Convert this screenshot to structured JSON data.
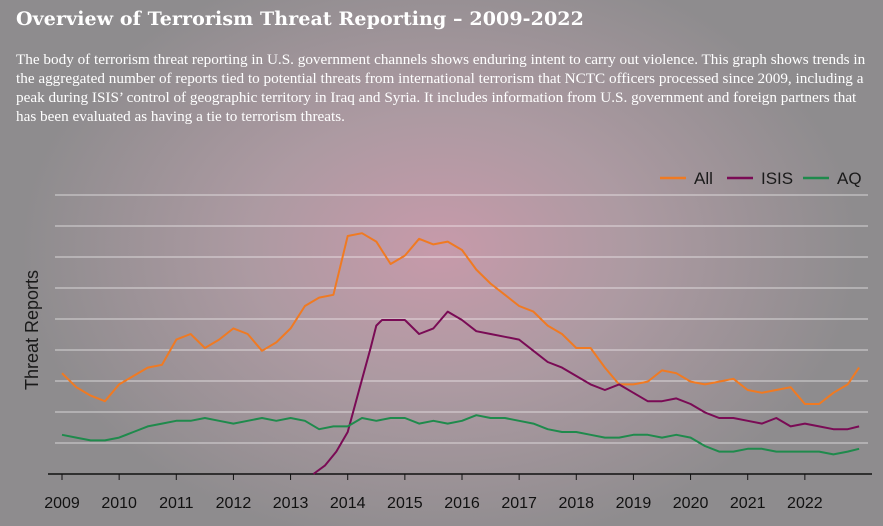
{
  "header": {
    "title": "Overview of Terrorism Threat Reporting – 2009-2022",
    "description": "The body of terrorism threat reporting in U.S. government channels shows enduring intent to carry out violence. This graph shows trends in the aggregated number of reports tied to potential threats from international terrorism that NCTC officers processed since 2009, including a peak during ISIS’ control of geographic territory in Iraq and Syria. It includes information from U.S. government and foreign partners that has been evaluated as having a tie to terrorism threats."
  },
  "colors": {
    "All": "#f07a22",
    "ISIS": "#7a0b55",
    "AQ": "#1f8a4c",
    "grid": "#ffffff",
    "axis": "#111111"
  },
  "chart_data": {
    "type": "line",
    "title": "Overview of Terrorism Threat Reporting – 2009-2022",
    "ylabel": "Threat Reports",
    "xlabel": "",
    "ylim": [
      0,
      10
    ],
    "y_tick_labels": "none",
    "x_tick_labels": [
      "2009",
      "2010",
      "2011",
      "2012",
      "2013",
      "2014",
      "2015",
      "2016",
      "2017",
      "2018",
      "2019",
      "2020",
      "2021",
      "2022"
    ],
    "grid": "horizontal",
    "legend": "top-right",
    "series": [
      {
        "name": "All",
        "x": [
          2009.0,
          2009.25,
          2009.5,
          2009.75,
          2010.0,
          2010.25,
          2010.5,
          2010.75,
          2011.0,
          2011.25,
          2011.5,
          2011.75,
          2012.0,
          2012.25,
          2012.5,
          2012.75,
          2013.0,
          2013.25,
          2013.5,
          2013.75,
          2014.0,
          2014.25,
          2014.5,
          2014.75,
          2015.0,
          2015.25,
          2015.5,
          2015.75,
          2016.0,
          2016.25,
          2016.5,
          2016.75,
          2017.0,
          2017.25,
          2017.5,
          2017.75,
          2018.0,
          2018.25,
          2018.5,
          2018.75,
          2019.0,
          2019.25,
          2019.5,
          2019.75,
          2020.0,
          2020.25,
          2020.5,
          2020.75,
          2021.0,
          2021.25,
          2021.5,
          2021.75,
          2022.0,
          2022.25,
          2022.5,
          2022.75,
          2022.95
        ],
        "values": [
          3.6,
          3.1,
          2.8,
          2.6,
          3.2,
          3.5,
          3.8,
          3.9,
          4.8,
          5.0,
          4.5,
          4.8,
          5.2,
          5.0,
          4.4,
          4.7,
          5.2,
          6.0,
          6.3,
          6.4,
          8.5,
          8.6,
          8.3,
          7.5,
          7.8,
          8.4,
          8.2,
          8.3,
          8.0,
          7.3,
          6.8,
          6.4,
          6.0,
          5.8,
          5.3,
          5.0,
          4.5,
          4.5,
          3.8,
          3.2,
          3.2,
          3.3,
          3.7,
          3.6,
          3.3,
          3.2,
          3.3,
          3.4,
          3.0,
          2.9,
          3.0,
          3.1,
          2.5,
          2.5,
          2.9,
          3.2,
          3.8
        ]
      },
      {
        "name": "ISIS",
        "x": [
          2013.4,
          2013.6,
          2013.8,
          2014.0,
          2014.2,
          2014.4,
          2014.5,
          2014.6,
          2014.75,
          2015.0,
          2015.25,
          2015.5,
          2015.75,
          2016.0,
          2016.25,
          2016.5,
          2016.75,
          2017.0,
          2017.25,
          2017.5,
          2017.75,
          2018.0,
          2018.25,
          2018.5,
          2018.75,
          2019.0,
          2019.25,
          2019.5,
          2019.75,
          2020.0,
          2020.25,
          2020.5,
          2020.75,
          2021.0,
          2021.25,
          2021.5,
          2021.75,
          2022.0,
          2022.25,
          2022.5,
          2022.75,
          2022.95
        ],
        "values": [
          0.0,
          0.3,
          0.8,
          1.5,
          3.0,
          4.5,
          5.3,
          5.5,
          5.5,
          5.5,
          5.0,
          5.2,
          5.8,
          5.5,
          5.1,
          5.0,
          4.9,
          4.8,
          4.4,
          4.0,
          3.8,
          3.5,
          3.2,
          3.0,
          3.2,
          2.9,
          2.6,
          2.6,
          2.7,
          2.5,
          2.2,
          2.0,
          2.0,
          1.9,
          1.8,
          2.0,
          1.7,
          1.8,
          1.7,
          1.6,
          1.6,
          1.7
        ]
      },
      {
        "name": "AQ",
        "x": [
          2009.0,
          2009.25,
          2009.5,
          2009.75,
          2010.0,
          2010.25,
          2010.5,
          2010.75,
          2011.0,
          2011.25,
          2011.5,
          2011.75,
          2012.0,
          2012.25,
          2012.5,
          2012.75,
          2013.0,
          2013.25,
          2013.5,
          2013.75,
          2014.0,
          2014.25,
          2014.5,
          2014.75,
          2015.0,
          2015.25,
          2015.5,
          2015.75,
          2016.0,
          2016.25,
          2016.5,
          2016.75,
          2017.0,
          2017.25,
          2017.5,
          2017.75,
          2018.0,
          2018.25,
          2018.5,
          2018.75,
          2019.0,
          2019.25,
          2019.5,
          2019.75,
          2020.0,
          2020.25,
          2020.5,
          2020.75,
          2021.0,
          2021.25,
          2021.5,
          2021.75,
          2022.0,
          2022.25,
          2022.5,
          2022.75,
          2022.95
        ],
        "values": [
          1.4,
          1.3,
          1.2,
          1.2,
          1.3,
          1.5,
          1.7,
          1.8,
          1.9,
          1.9,
          2.0,
          1.9,
          1.8,
          1.9,
          2.0,
          1.9,
          2.0,
          1.9,
          1.6,
          1.7,
          1.7,
          2.0,
          1.9,
          2.0,
          2.0,
          1.8,
          1.9,
          1.8,
          1.9,
          2.1,
          2.0,
          2.0,
          1.9,
          1.8,
          1.6,
          1.5,
          1.5,
          1.4,
          1.3,
          1.3,
          1.4,
          1.4,
          1.3,
          1.4,
          1.3,
          1.0,
          0.8,
          0.8,
          0.9,
          0.9,
          0.8,
          0.8,
          0.8,
          0.8,
          0.7,
          0.8,
          0.9
        ]
      }
    ]
  }
}
